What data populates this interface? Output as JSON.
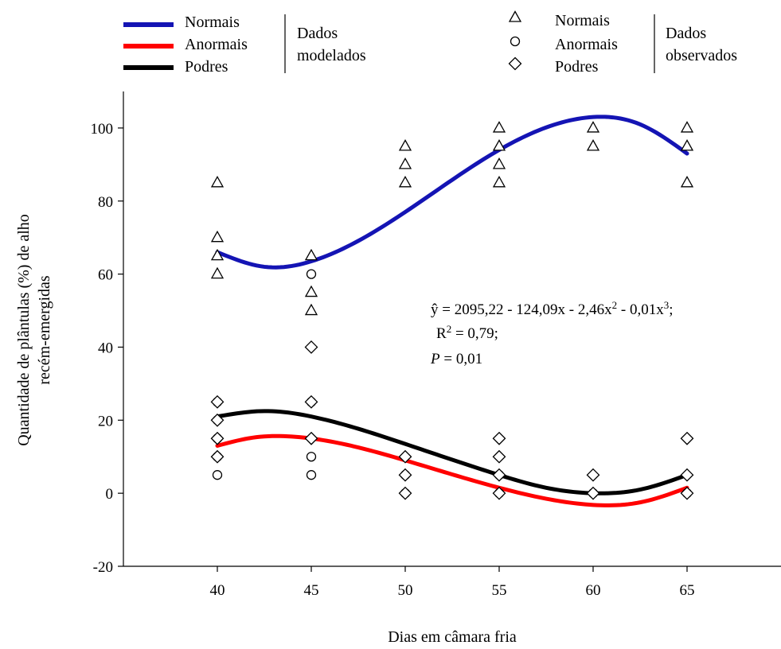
{
  "chart_data": {
    "type": "scatter",
    "xlabel": "Dias em câmara fria",
    "ylabel_line1": "Quantidade de plântulas (%) de alho",
    "ylabel_line2": "recém-emergidas",
    "xlim": [
      35,
      70
    ],
    "ylim": [
      -20,
      110
    ],
    "x_ticks": [
      40,
      45,
      50,
      55,
      60,
      65
    ],
    "y_ticks": [
      -20,
      0,
      20,
      40,
      60,
      80,
      100
    ],
    "grid": false,
    "legend": {
      "modeled_group_label_line1": "Dados",
      "modeled_group_label_line2": "modelados",
      "observed_group_label_line1": "Dados",
      "observed_group_label_line2": "observados",
      "placement": "top"
    },
    "annotation": {
      "equation_main": "ŷ = 2095,22 - 124,09x - 2,46x",
      "equation_sup1": "2",
      "equation_mid": " - 0,01x",
      "equation_sup2": "3",
      "equation_end": ";",
      "r2_prefix": "R",
      "r2_sup": "2",
      "r2_value": " = 0,79;",
      "p_letter": "P",
      "p_value": " = 0,01"
    },
    "series": [
      {
        "name": "Normais",
        "color": "#1414b4",
        "marker": "triangle",
        "fitted": [
          [
            40,
            66
          ],
          [
            42.5,
            62
          ],
          [
            45,
            63.5
          ],
          [
            50,
            77
          ],
          [
            55,
            94
          ],
          [
            60,
            103
          ],
          [
            62.5,
            101
          ],
          [
            65,
            93
          ]
        ],
        "observed": [
          [
            40,
            85
          ],
          [
            40,
            70
          ],
          [
            40,
            65
          ],
          [
            40,
            60
          ],
          [
            45,
            65
          ],
          [
            45,
            55
          ],
          [
            45,
            50
          ],
          [
            50,
            95
          ],
          [
            50,
            90
          ],
          [
            50,
            85
          ],
          [
            55,
            100
          ],
          [
            55,
            95
          ],
          [
            55,
            90
          ],
          [
            55,
            85
          ],
          [
            60,
            100
          ],
          [
            60,
            95
          ],
          [
            65,
            100
          ],
          [
            65,
            95
          ],
          [
            65,
            85
          ]
        ]
      },
      {
        "name": "Anormais",
        "color": "#ff0000",
        "marker": "circle",
        "fitted": [
          [
            40,
            13
          ],
          [
            42,
            15.3
          ],
          [
            44,
            15.5
          ],
          [
            45,
            15
          ],
          [
            50,
            9
          ],
          [
            55,
            1.5
          ],
          [
            57.5,
            -1.5
          ],
          [
            60,
            -3.2
          ],
          [
            62.5,
            -2.5
          ],
          [
            65,
            1.5
          ]
        ],
        "observed": [
          [
            40,
            25
          ],
          [
            40,
            20
          ],
          [
            40,
            15
          ],
          [
            40,
            10
          ],
          [
            40,
            5
          ],
          [
            45,
            60
          ],
          [
            45,
            25
          ],
          [
            45,
            10
          ],
          [
            45,
            5
          ],
          [
            50,
            5
          ],
          [
            50,
            0
          ],
          [
            55,
            5
          ],
          [
            55,
            0
          ],
          [
            60,
            0
          ],
          [
            65,
            0
          ]
        ]
      },
      {
        "name": "Podres",
        "color": "#000000",
        "marker": "diamond",
        "fitted": [
          [
            40,
            21
          ],
          [
            42.5,
            22.5
          ],
          [
            45,
            21
          ],
          [
            50,
            13.5
          ],
          [
            55,
            5
          ],
          [
            57.5,
            1.5
          ],
          [
            60,
            0
          ],
          [
            62.5,
            1
          ],
          [
            65,
            5
          ]
        ],
        "observed": [
          [
            40,
            25
          ],
          [
            40,
            20
          ],
          [
            40,
            15
          ],
          [
            40,
            10
          ],
          [
            45,
            40
          ],
          [
            45,
            25
          ],
          [
            45,
            15
          ],
          [
            50,
            10
          ],
          [
            50,
            5
          ],
          [
            50,
            0
          ],
          [
            55,
            15
          ],
          [
            55,
            10
          ],
          [
            55,
            5
          ],
          [
            55,
            0
          ],
          [
            60,
            5
          ],
          [
            60,
            0
          ],
          [
            65,
            15
          ],
          [
            65,
            5
          ],
          [
            65,
            0
          ]
        ]
      }
    ]
  }
}
